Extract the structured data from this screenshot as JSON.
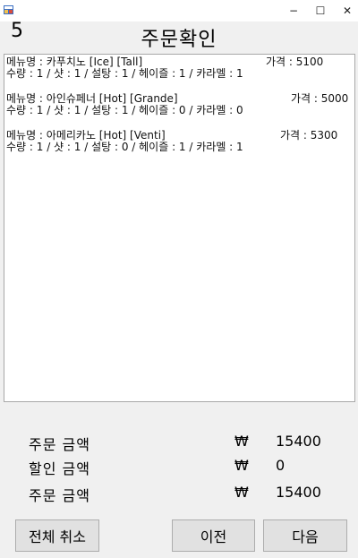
{
  "window": {
    "minimize": "−",
    "maximize": "☐",
    "close": "✕"
  },
  "header": {
    "order_number": "5",
    "title": "주문확인"
  },
  "orders": [
    {
      "name": "메뉴명 : 카푸치노 [Ice] [Tall]",
      "price": "가격 : 5100",
      "options": "수량 : 1 /  샷 : 1 /  설탕 : 1 / 헤이즐 : 1 / 카라멜 : 1"
    },
    {
      "name": "메뉴명 : 아인슈페너 [Hot] [Grande]",
      "price": "가격 : 5000",
      "options": "수량 : 1 /  샷 : 1 /  설탕 : 1 / 헤이즐 : 0 / 카라멜 : 0"
    },
    {
      "name": "메뉴명 : 아메리카노 [Hot] [Venti]",
      "price": "가격 : 5300",
      "options": "수량 : 1 /  샷 : 1 /  설탕 : 0 / 헤이즐 : 1 / 카라멜 : 1"
    }
  ],
  "summary": {
    "order_total_label": "주문 금액",
    "order_total_currency": "₩",
    "order_total_value": "15400",
    "discount_label": "할인 금액",
    "discount_currency": "₩",
    "discount_value": "0",
    "final_label": "주문 금액",
    "final_currency": "₩",
    "final_value": "15400"
  },
  "buttons": {
    "cancel_all": "전체 취소",
    "previous": "이전",
    "next": "다음"
  }
}
